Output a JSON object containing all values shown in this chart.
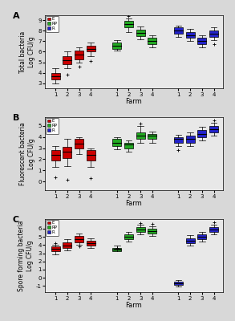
{
  "panels": [
    {
      "label": "A",
      "ylabel": "Total bacteria\nLog CFU/g",
      "ylim": [
        2.5,
        9.5
      ],
      "yticks": [
        3,
        4,
        5,
        6,
        7,
        8,
        9
      ],
      "ytick_labels": [
        "3",
        "4",
        "5",
        "6",
        "7",
        "8",
        "9"
      ],
      "groups": {
        "red": [
          {
            "med": 3.7,
            "q1": 3.4,
            "q3": 4.0,
            "whislo": 3.0,
            "whishi": 4.4,
            "fliers": []
          },
          {
            "med": 5.2,
            "q1": 4.8,
            "q3": 5.6,
            "whislo": 4.4,
            "whishi": 6.0,
            "fliers": [
              3.8
            ]
          },
          {
            "med": 5.7,
            "q1": 5.3,
            "q3": 6.1,
            "whislo": 5.0,
            "whishi": 6.4,
            "fliers": [
              4.6
            ]
          },
          {
            "med": 6.3,
            "q1": 6.0,
            "q3": 6.6,
            "whislo": 5.6,
            "whishi": 6.9,
            "fliers": [
              5.1
            ]
          }
        ],
        "green": [
          {
            "med": 6.6,
            "q1": 6.3,
            "q3": 6.9,
            "whislo": 6.1,
            "whishi": 7.1,
            "fliers": []
          },
          {
            "med": 8.6,
            "q1": 8.3,
            "q3": 8.9,
            "whislo": 7.9,
            "whishi": 9.2,
            "fliers": [
              9.4
            ]
          },
          {
            "med": 7.8,
            "q1": 7.5,
            "q3": 8.1,
            "whislo": 7.2,
            "whishi": 8.4,
            "fliers": []
          },
          {
            "med": 7.0,
            "q1": 6.7,
            "q3": 7.3,
            "whislo": 6.4,
            "whishi": 7.6,
            "fliers": []
          }
        ],
        "blue": [
          {
            "med": 8.0,
            "q1": 7.7,
            "q3": 8.3,
            "whislo": 7.4,
            "whishi": 8.5,
            "fliers": []
          },
          {
            "med": 7.6,
            "q1": 7.3,
            "q3": 7.9,
            "whislo": 7.0,
            "whishi": 8.2,
            "fliers": []
          },
          {
            "med": 7.0,
            "q1": 6.7,
            "q3": 7.3,
            "whislo": 6.4,
            "whishi": 7.6,
            "fliers": []
          },
          {
            "med": 7.7,
            "q1": 7.4,
            "q3": 8.0,
            "whislo": 7.1,
            "whishi": 8.3,
            "fliers": [
              6.7
            ]
          }
        ]
      }
    },
    {
      "label": "B",
      "ylabel": "Fluorescent bacteria\nLog CFU/g",
      "ylim": [
        -0.8,
        5.8
      ],
      "yticks": [
        0,
        1,
        2,
        3,
        4,
        5
      ],
      "ytick_labels": [
        "0",
        "1",
        "2",
        "3",
        "4",
        "5"
      ],
      "groups": {
        "red": [
          {
            "med": 2.4,
            "q1": 1.9,
            "q3": 2.8,
            "whislo": 1.3,
            "whishi": 3.2,
            "fliers": [
              0.4
            ]
          },
          {
            "med": 2.7,
            "q1": 2.1,
            "q3": 3.1,
            "whislo": 1.4,
            "whishi": 3.8,
            "fliers": [
              0.2
            ]
          },
          {
            "med": 3.4,
            "q1": 3.0,
            "q3": 3.8,
            "whislo": 2.5,
            "whishi": 4.0,
            "fliers": []
          },
          {
            "med": 2.4,
            "q1": 1.9,
            "q3": 2.8,
            "whislo": 1.3,
            "whishi": 3.0,
            "fliers": [
              0.3
            ]
          }
        ],
        "green": [
          {
            "med": 3.5,
            "q1": 3.2,
            "q3": 3.8,
            "whislo": 2.9,
            "whishi": 4.0,
            "fliers": []
          },
          {
            "med": 3.3,
            "q1": 3.0,
            "q3": 3.5,
            "whislo": 2.7,
            "whishi": 3.7,
            "fliers": []
          },
          {
            "med": 4.1,
            "q1": 3.8,
            "q3": 4.4,
            "whislo": 3.5,
            "whishi": 5.0,
            "fliers": [
              5.2
            ]
          },
          {
            "med": 4.1,
            "q1": 3.8,
            "q3": 4.3,
            "whislo": 3.5,
            "whishi": 4.5,
            "fliers": []
          }
        ],
        "blue": [
          {
            "med": 3.8,
            "q1": 3.5,
            "q3": 4.0,
            "whislo": 3.2,
            "whishi": 4.2,
            "fliers": [
              2.8
            ]
          },
          {
            "med": 3.8,
            "q1": 3.5,
            "q3": 4.1,
            "whislo": 3.2,
            "whishi": 4.4,
            "fliers": []
          },
          {
            "med": 4.3,
            "q1": 4.0,
            "q3": 4.6,
            "whislo": 3.7,
            "whishi": 4.9,
            "fliers": []
          },
          {
            "med": 4.7,
            "q1": 4.4,
            "q3": 5.0,
            "whislo": 4.1,
            "whishi": 5.3,
            "fliers": [
              5.5
            ]
          }
        ]
      }
    },
    {
      "label": "C",
      "ylabel": "Spore forming bacteria\nLog CFU/g",
      "ylim": [
        -1.8,
        7.2
      ],
      "yticks": [
        -1,
        0,
        1,
        2,
        3,
        4,
        5,
        6
      ],
      "ytick_labels": [
        "-1",
        "0",
        "1",
        "2",
        "3",
        "4",
        "5",
        "6"
      ],
      "groups": {
        "red": [
          {
            "med": 3.5,
            "q1": 3.2,
            "q3": 3.8,
            "whislo": 2.9,
            "whishi": 4.0,
            "fliers": [
              4.2
            ]
          },
          {
            "med": 3.9,
            "q1": 3.6,
            "q3": 4.3,
            "whislo": 3.3,
            "whishi": 4.7,
            "fliers": []
          },
          {
            "med": 4.7,
            "q1": 4.3,
            "q3": 5.1,
            "whislo": 4.0,
            "whishi": 5.4,
            "fliers": [
              3.8
            ]
          },
          {
            "med": 4.2,
            "q1": 3.9,
            "q3": 4.5,
            "whislo": 3.6,
            "whishi": 4.8,
            "fliers": []
          }
        ],
        "green": [
          {
            "med": 3.4,
            "q1": 3.2,
            "q3": 3.6,
            "whislo": 3.5,
            "whishi": 3.9,
            "fliers": [
              3.6
            ]
          },
          {
            "med": 5.0,
            "q1": 4.7,
            "q3": 5.3,
            "whislo": 4.4,
            "whishi": 5.6,
            "fliers": []
          },
          {
            "med": 5.9,
            "q1": 5.6,
            "q3": 6.2,
            "whislo": 5.3,
            "whishi": 6.5,
            "fliers": [
              6.7
            ]
          },
          {
            "med": 5.7,
            "q1": 5.4,
            "q3": 6.0,
            "whislo": 5.1,
            "whishi": 6.3,
            "fliers": [
              6.6
            ]
          }
        ],
        "blue": [
          {
            "med": -0.7,
            "q1": -0.9,
            "q3": -0.5,
            "whislo": -1.1,
            "whishi": -0.3,
            "fliers": []
          },
          {
            "med": 4.5,
            "q1": 4.2,
            "q3": 4.8,
            "whislo": 3.9,
            "whishi": 5.2,
            "fliers": []
          },
          {
            "med": 5.0,
            "q1": 4.7,
            "q3": 5.3,
            "whislo": 4.4,
            "whishi": 5.6,
            "fliers": []
          },
          {
            "med": 5.9,
            "q1": 5.6,
            "q3": 6.2,
            "whislo": 5.3,
            "whishi": 6.5,
            "fliers": [
              6.8
            ]
          }
        ]
      }
    }
  ],
  "legend_labels": [
    "E",
    "RP",
    "R"
  ],
  "legend_colors": [
    "#cc0000",
    "#22aa22",
    "#2222cc"
  ],
  "farm_labels": [
    "1",
    "2",
    "3",
    "4"
  ],
  "box_width": 0.75,
  "bg_color": "#d8d8d8",
  "plot_bg": "#e8e8e8"
}
